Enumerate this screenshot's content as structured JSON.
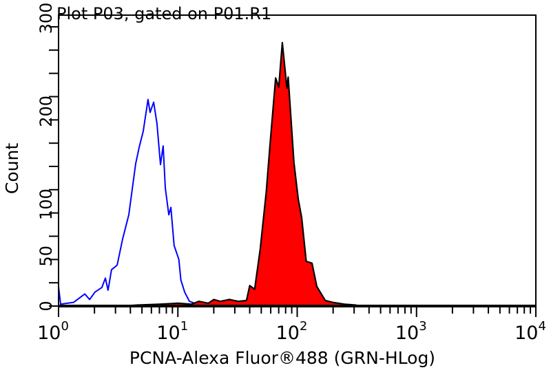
{
  "chart_data": {
    "type": "area",
    "title": "Plot P03, gated on P01.R1",
    "xlabel": "PCNA-Alexa Fluor®488 (GRN-HLog)",
    "ylabel": "Count",
    "xscale": "log",
    "xlim": [
      1,
      10000
    ],
    "ylim": [
      0,
      300
    ],
    "x_ticks": [
      {
        "base": "10",
        "exp": "0"
      },
      {
        "base": "10",
        "exp": "1"
      },
      {
        "base": "10",
        "exp": "2"
      },
      {
        "base": "10",
        "exp": "3"
      },
      {
        "base": "10",
        "exp": "4"
      }
    ],
    "y_ticks": [
      "0",
      "50",
      "100",
      "200",
      "300"
    ],
    "y_tick_values": [
      0,
      50,
      100,
      200,
      300
    ],
    "grid": false,
    "series": [
      {
        "style": "line",
        "color": "#0000ff",
        "points": [
          [
            1.0,
            21
          ],
          [
            1.04,
            2
          ],
          [
            1.34,
            4
          ],
          [
            1.66,
            13
          ],
          [
            1.82,
            7
          ],
          [
            2.02,
            15
          ],
          [
            2.31,
            20
          ],
          [
            2.47,
            30
          ],
          [
            2.6,
            17
          ],
          [
            2.78,
            39
          ],
          [
            3.1,
            44
          ],
          [
            3.44,
            72
          ],
          [
            3.88,
            98
          ],
          [
            4.43,
            153
          ],
          [
            4.73,
            170
          ],
          [
            5.13,
            188
          ],
          [
            5.62,
            222
          ],
          [
            5.85,
            208
          ],
          [
            6.27,
            219
          ],
          [
            6.68,
            196
          ],
          [
            7.15,
            152
          ],
          [
            7.53,
            172
          ],
          [
            7.85,
            127
          ],
          [
            8.4,
            98
          ],
          [
            8.74,
            106
          ],
          [
            9.3,
            65
          ],
          [
            10.2,
            50
          ],
          [
            10.6,
            28
          ],
          [
            11.4,
            15
          ],
          [
            12.5,
            5
          ],
          [
            14.6,
            2
          ],
          [
            17.5,
            1
          ]
        ]
      },
      {
        "style": "filled",
        "color": "#ff0000",
        "outline": "#000000",
        "points": [
          [
            3.5,
            0
          ],
          [
            4.5,
            1
          ],
          [
            7,
            2
          ],
          [
            10,
            3
          ],
          [
            13,
            2
          ],
          [
            15,
            5
          ],
          [
            18,
            3
          ],
          [
            20,
            7
          ],
          [
            22.7,
            5
          ],
          [
            27,
            7
          ],
          [
            32,
            5
          ],
          [
            37.6,
            6
          ],
          [
            40,
            22
          ],
          [
            44,
            18
          ],
          [
            49,
            61
          ],
          [
            55,
            122
          ],
          [
            59,
            171
          ],
          [
            66,
            245
          ],
          [
            70,
            235
          ],
          [
            75,
            283
          ],
          [
            82,
            234
          ],
          [
            84,
            246
          ],
          [
            94,
            154
          ],
          [
            102,
            115
          ],
          [
            109,
            95
          ],
          [
            119,
            48
          ],
          [
            133,
            46
          ],
          [
            146,
            21
          ],
          [
            172,
            6
          ],
          [
            197,
            4
          ],
          [
            250,
            2
          ],
          [
            310,
            1
          ],
          [
            330,
            0
          ]
        ]
      }
    ]
  }
}
